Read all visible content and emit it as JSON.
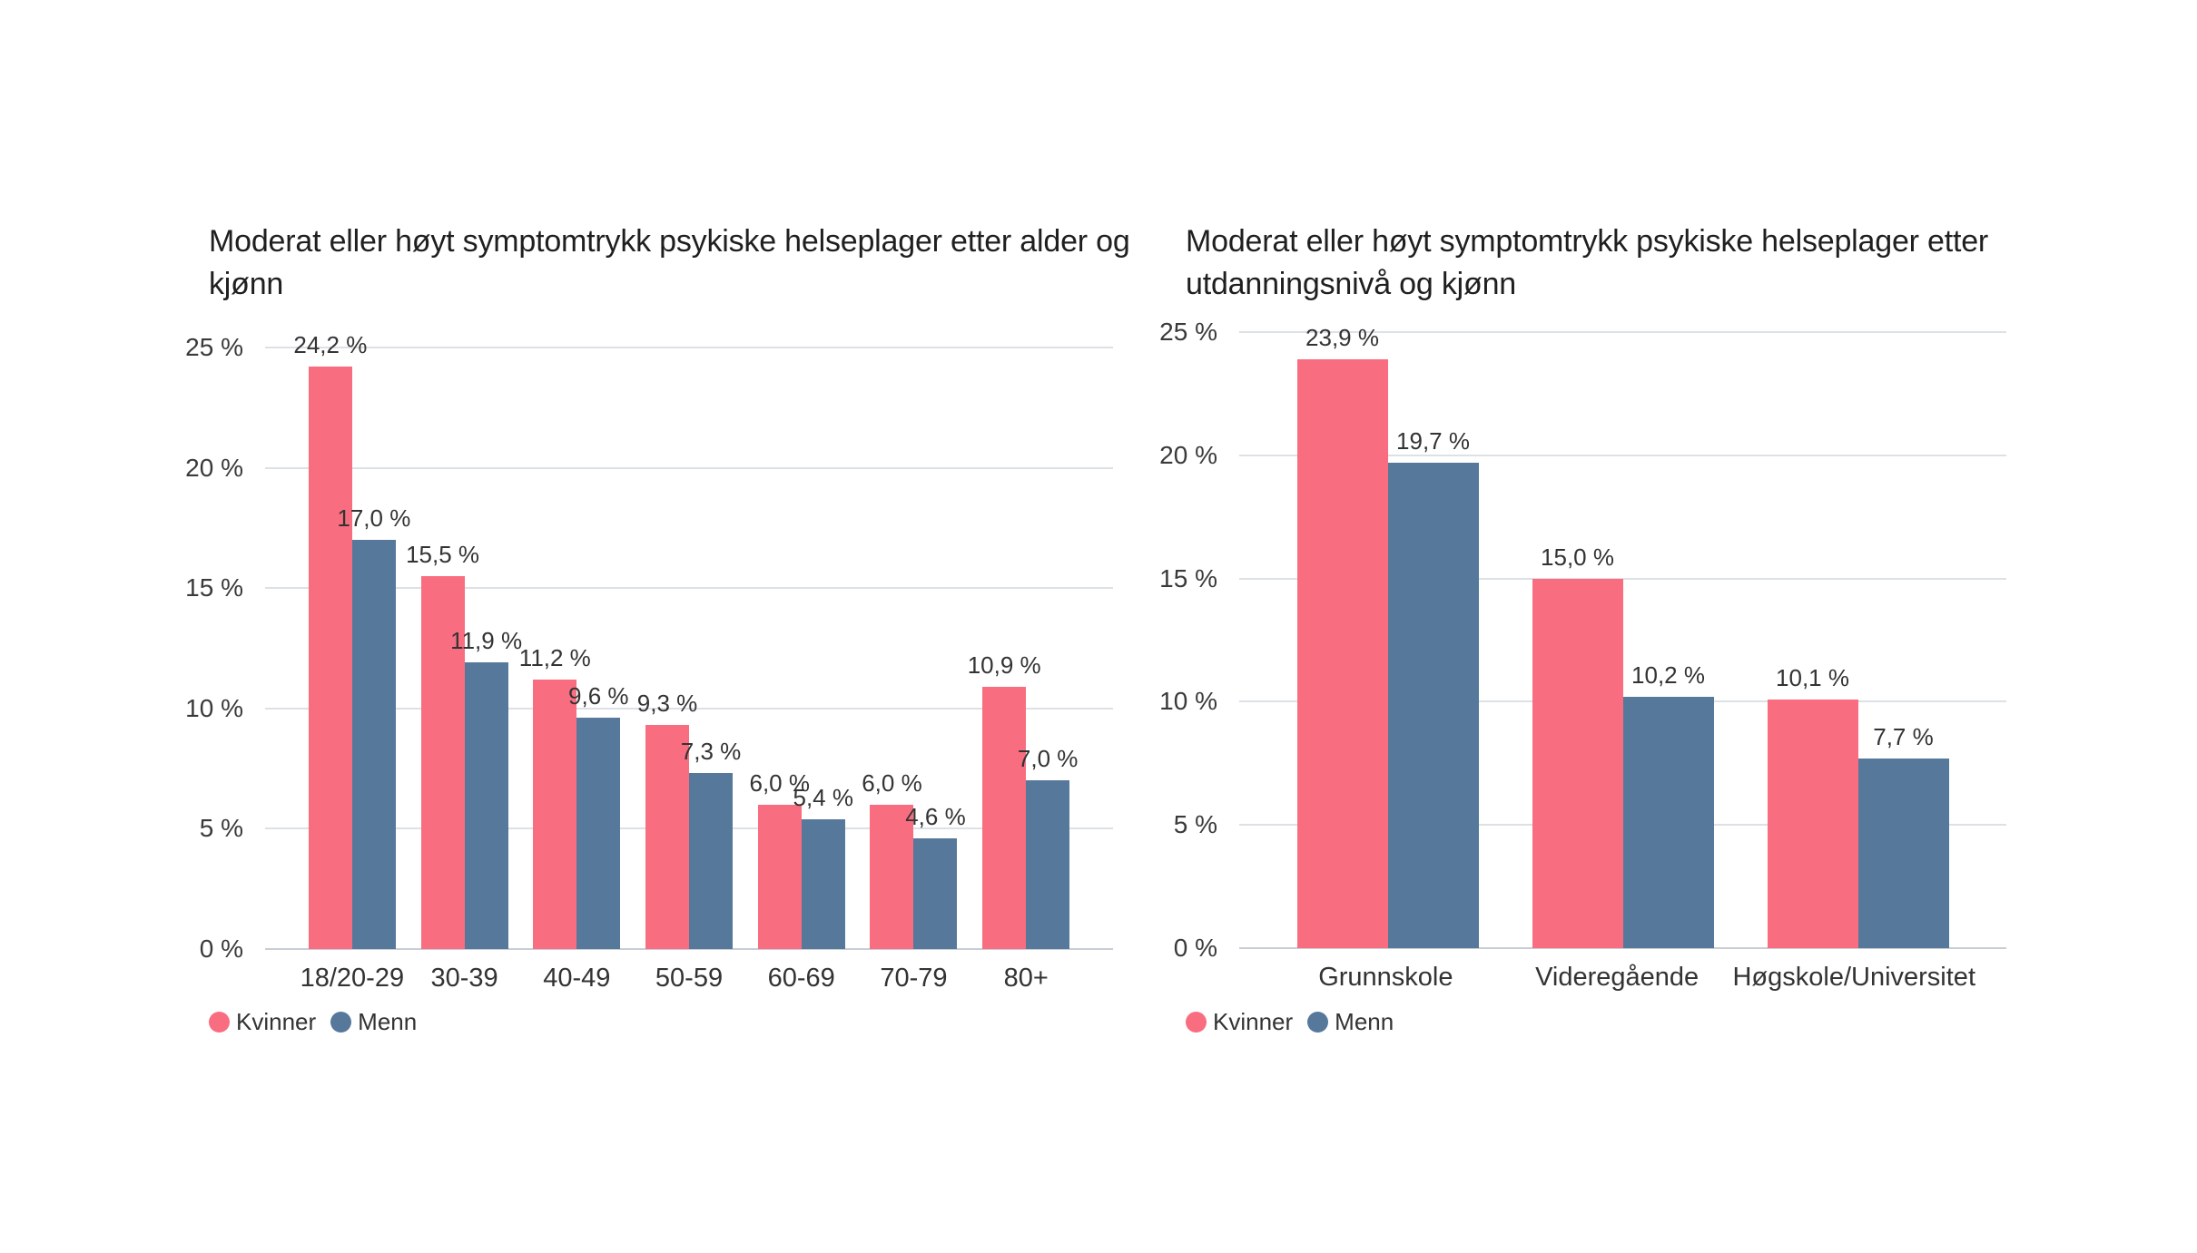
{
  "page": {
    "background": "#ffffff"
  },
  "chart_data": [
    {
      "type": "bar",
      "title": "Moderat eller høyt symptomtrykk psykiske helseplager etter alder og kjønn",
      "categories": [
        "18/20-29",
        "30-39",
        "40-49",
        "50-59",
        "60-69",
        "70-79",
        "80+"
      ],
      "series": [
        {
          "name": "Kvinner",
          "color": "#F96D80",
          "values": [
            24.2,
            15.5,
            11.2,
            9.3,
            6.0,
            6.0,
            10.9
          ],
          "labels": [
            "24,2 %",
            "15,5 %",
            "11,2 %",
            "9,3 %",
            "6,0 %",
            "6,0 %",
            "10,9 %"
          ]
        },
        {
          "name": "Menn",
          "color": "#56789B",
          "values": [
            17.0,
            11.9,
            9.6,
            7.3,
            5.4,
            4.6,
            7.0
          ],
          "labels": [
            "17,0 %",
            "11,9 %",
            "9,6 %",
            "7,3 %",
            "5,4 %",
            "4,6 %",
            "7,0 %"
          ]
        }
      ],
      "ylim": [
        0,
        25
      ],
      "ytick_labels": [
        "0 %",
        "5 %",
        "10 %",
        "15 %",
        "20 %",
        "25 %"
      ],
      "grid": true,
      "legend_position": "bottom-left"
    },
    {
      "type": "bar",
      "title": "Moderat eller høyt symptomtrykk psykiske helseplager etter utdanningsnivå og kjønn",
      "categories": [
        "Grunnskole",
        "Videregående",
        "Høgskole/Universitet"
      ],
      "series": [
        {
          "name": "Kvinner",
          "color": "#F96D80",
          "values": [
            23.9,
            15.0,
            10.1
          ],
          "labels": [
            "23,9 %",
            "15,0 %",
            "10,1 %"
          ]
        },
        {
          "name": "Menn",
          "color": "#56789B",
          "values": [
            19.7,
            10.2,
            7.7
          ],
          "labels": [
            "19,7 %",
            "10,2 %",
            "7,7 %"
          ]
        }
      ],
      "ylim": [
        0,
        25
      ],
      "ytick_labels": [
        "0 %",
        "5 %",
        "10 %",
        "15 %",
        "20 %",
        "25 %"
      ],
      "grid": true,
      "legend_position": "bottom-left"
    }
  ]
}
